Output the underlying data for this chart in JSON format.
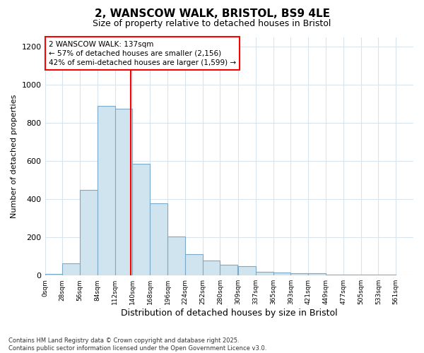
{
  "title1": "2, WANSCOW WALK, BRISTOL, BS9 4LE",
  "title2": "Size of property relative to detached houses in Bristol",
  "xlabel": "Distribution of detached houses by size in Bristol",
  "ylabel": "Number of detached properties",
  "bar_left_edges": [
    0,
    28,
    56,
    84,
    112,
    140,
    168,
    196,
    224,
    252,
    280,
    309,
    337,
    365,
    393,
    421,
    449,
    477,
    505,
    533
  ],
  "bar_heights": [
    10,
    65,
    450,
    890,
    875,
    585,
    380,
    205,
    110,
    80,
    55,
    50,
    20,
    15,
    12,
    12,
    5,
    5,
    5,
    3
  ],
  "bin_width": 28,
  "bar_color": "#d0e4f0",
  "bar_edge_color": "#7aaac8",
  "red_line_x": 137,
  "ylim": [
    0,
    1250
  ],
  "yticks": [
    0,
    200,
    400,
    600,
    800,
    1000,
    1200
  ],
  "xtick_labels": [
    "0sqm",
    "28sqm",
    "56sqm",
    "84sqm",
    "112sqm",
    "140sqm",
    "168sqm",
    "196sqm",
    "224sqm",
    "252sqm",
    "280sqm",
    "309sqm",
    "337sqm",
    "365sqm",
    "393sqm",
    "421sqm",
    "449sqm",
    "477sqm",
    "505sqm",
    "533sqm",
    "561sqm"
  ],
  "xtick_positions": [
    0,
    28,
    56,
    84,
    112,
    140,
    168,
    196,
    224,
    252,
    280,
    309,
    337,
    365,
    393,
    421,
    449,
    477,
    505,
    533,
    561
  ],
  "annotation_title": "2 WANSCOW WALK: 137sqm",
  "annotation_line1": "← 57% of detached houses are smaller (2,156)",
  "annotation_line2": "42% of semi-detached houses are larger (1,599) →",
  "footer_line1": "Contains HM Land Registry data © Crown copyright and database right 2025.",
  "footer_line2": "Contains public sector information licensed under the Open Government Licence v3.0.",
  "bg_color": "#ffffff",
  "plot_bg_color": "#ffffff",
  "grid_color": "#d8e4ee"
}
